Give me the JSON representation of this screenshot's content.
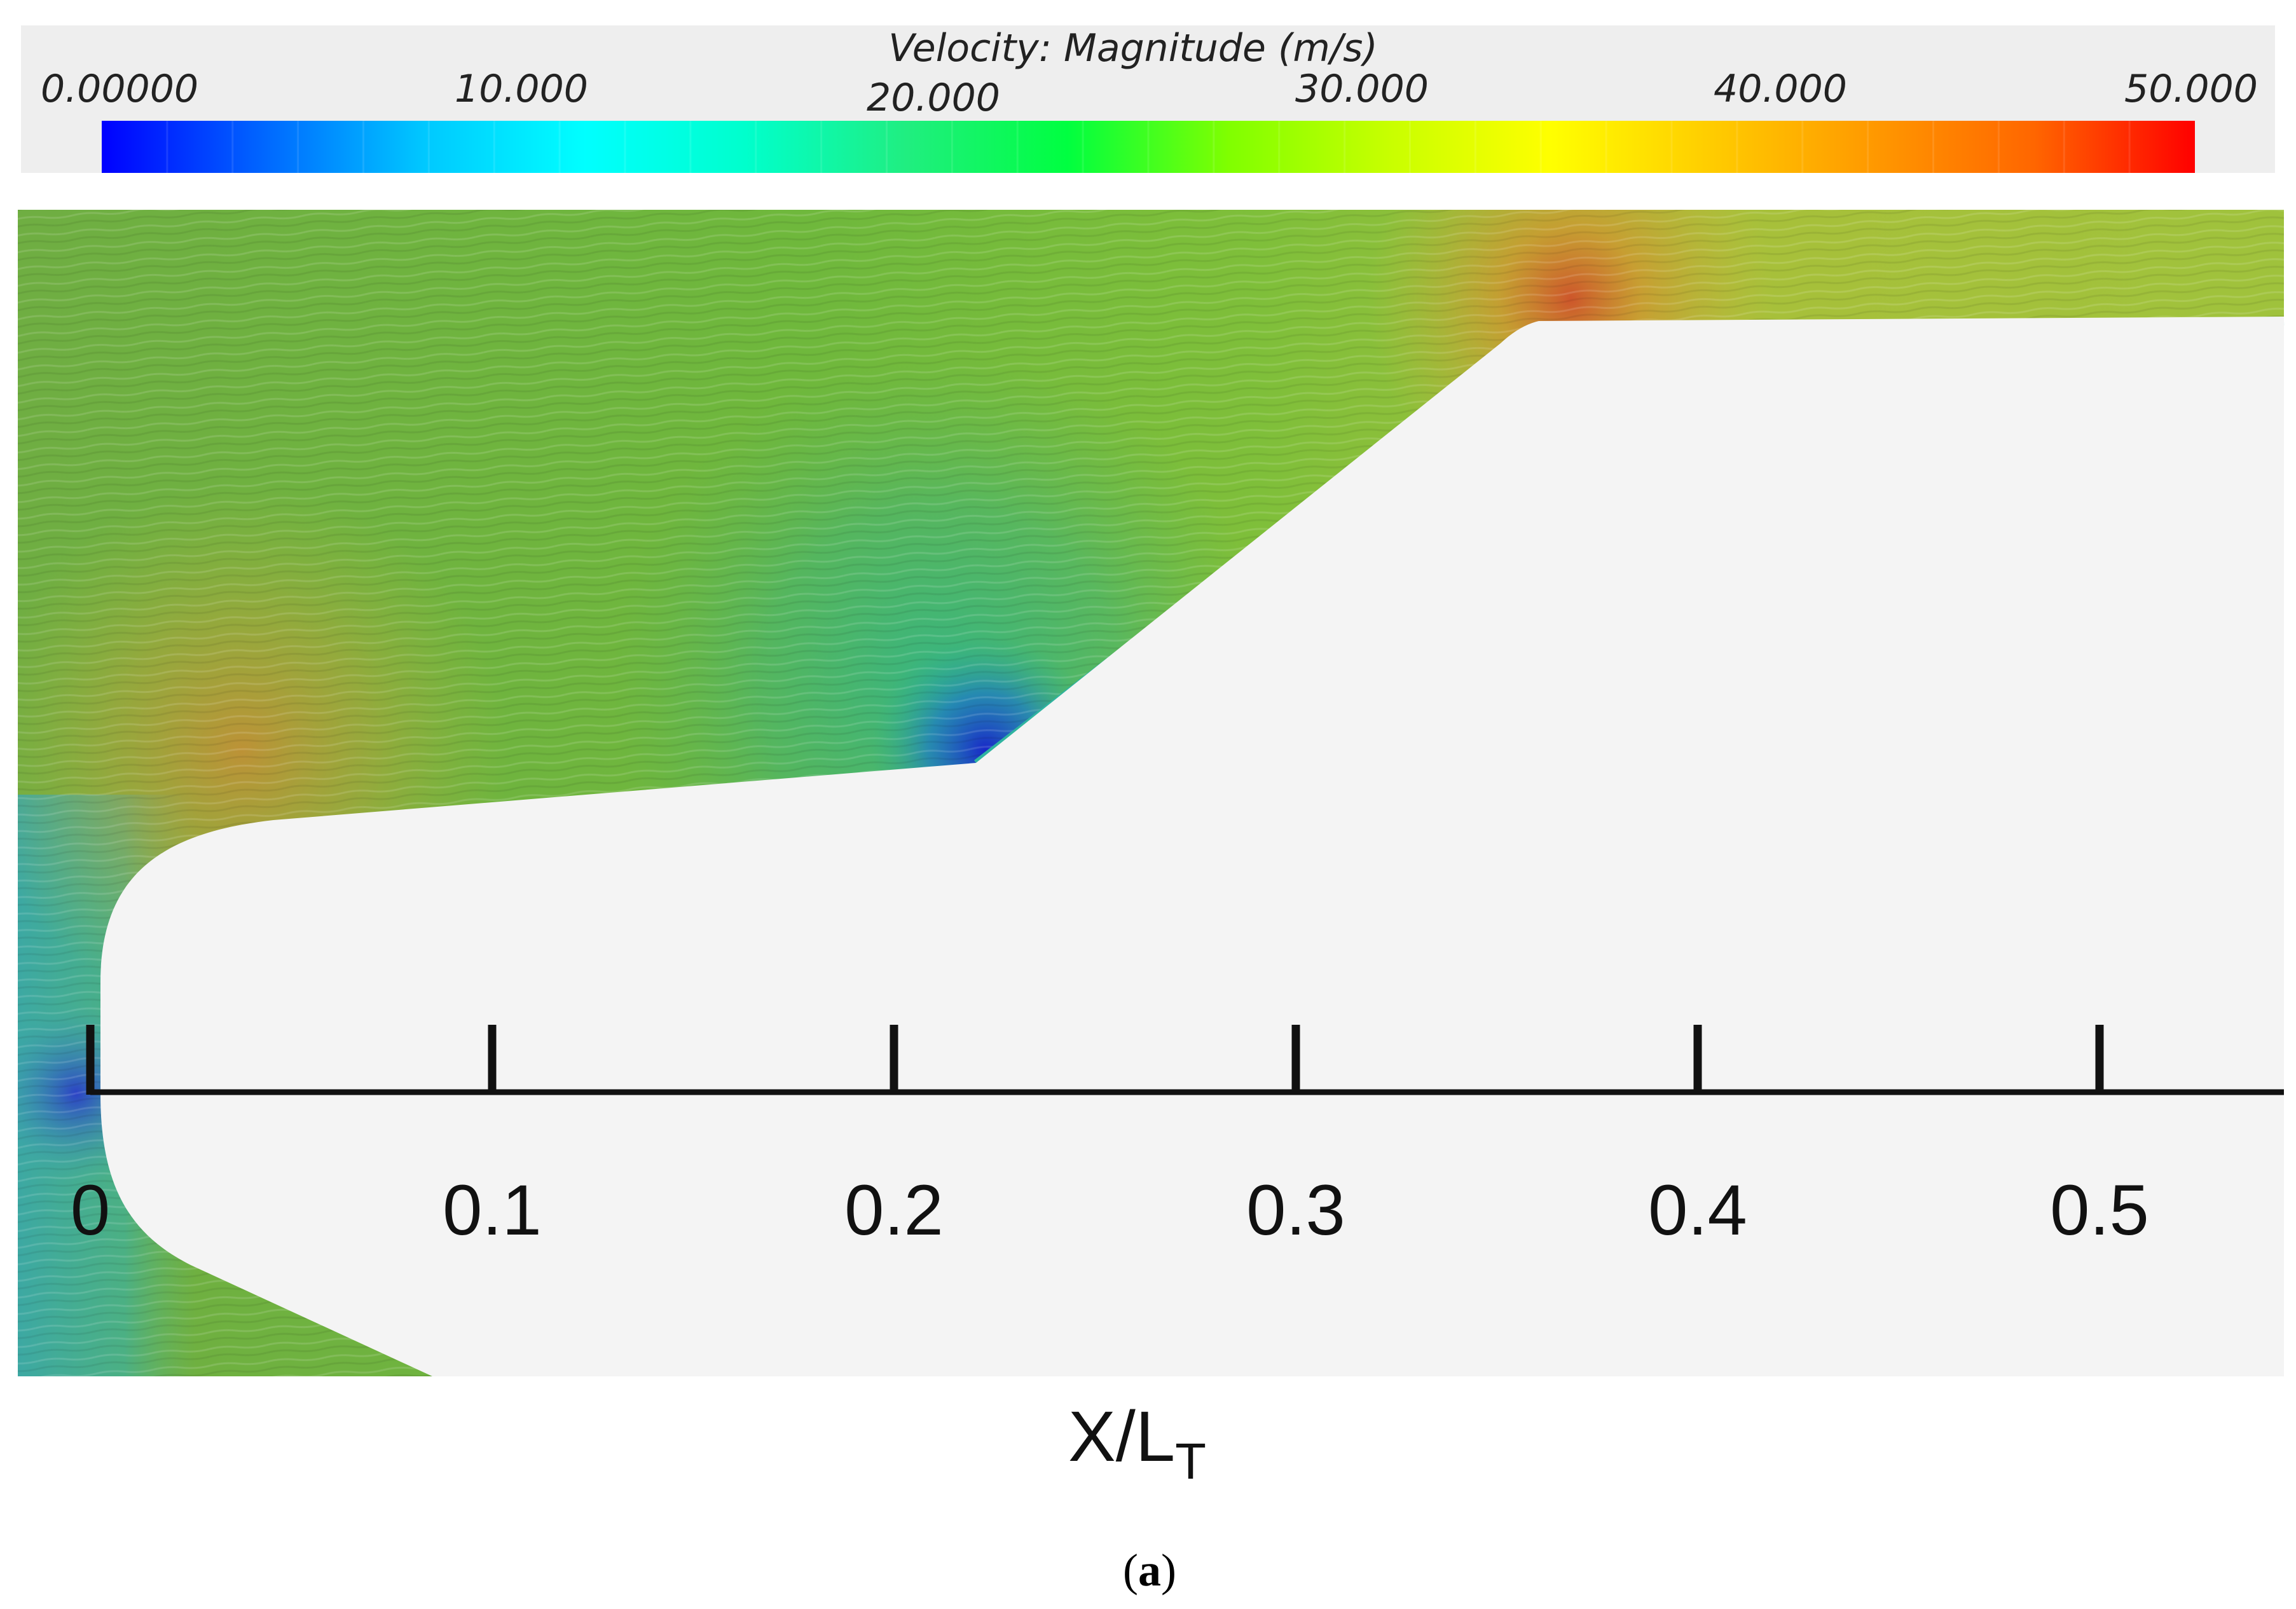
{
  "legend": {
    "title": "Velocity: Magnitude (m/s)",
    "tick_labels": [
      "0.00000",
      "10.000",
      "20.000",
      "30.000",
      "40.000",
      "50.000"
    ],
    "range": [
      0,
      50
    ],
    "color_stops": [
      "#0000ff",
      "#0066ff",
      "#00c8ff",
      "#00ffff",
      "#00ffcc",
      "#20ee80",
      "#00ff40",
      "#80ff00",
      "#c8ff00",
      "#ffff00",
      "#ffcc00",
      "#ff9900",
      "#ff6600",
      "#ff0000"
    ]
  },
  "axis": {
    "ticks": [
      "0",
      "0.1",
      "0.2",
      "0.3",
      "0.4",
      "0.5"
    ],
    "title_main": "X/L",
    "title_sub": "T"
  },
  "caption": {
    "open": "(",
    "bold": "a",
    "close": ")"
  },
  "colors": {
    "background": "#ffffff",
    "body": "#f4f4f4",
    "legend_panel": "#eeeeee",
    "flow_green": "#78b43c"
  }
}
